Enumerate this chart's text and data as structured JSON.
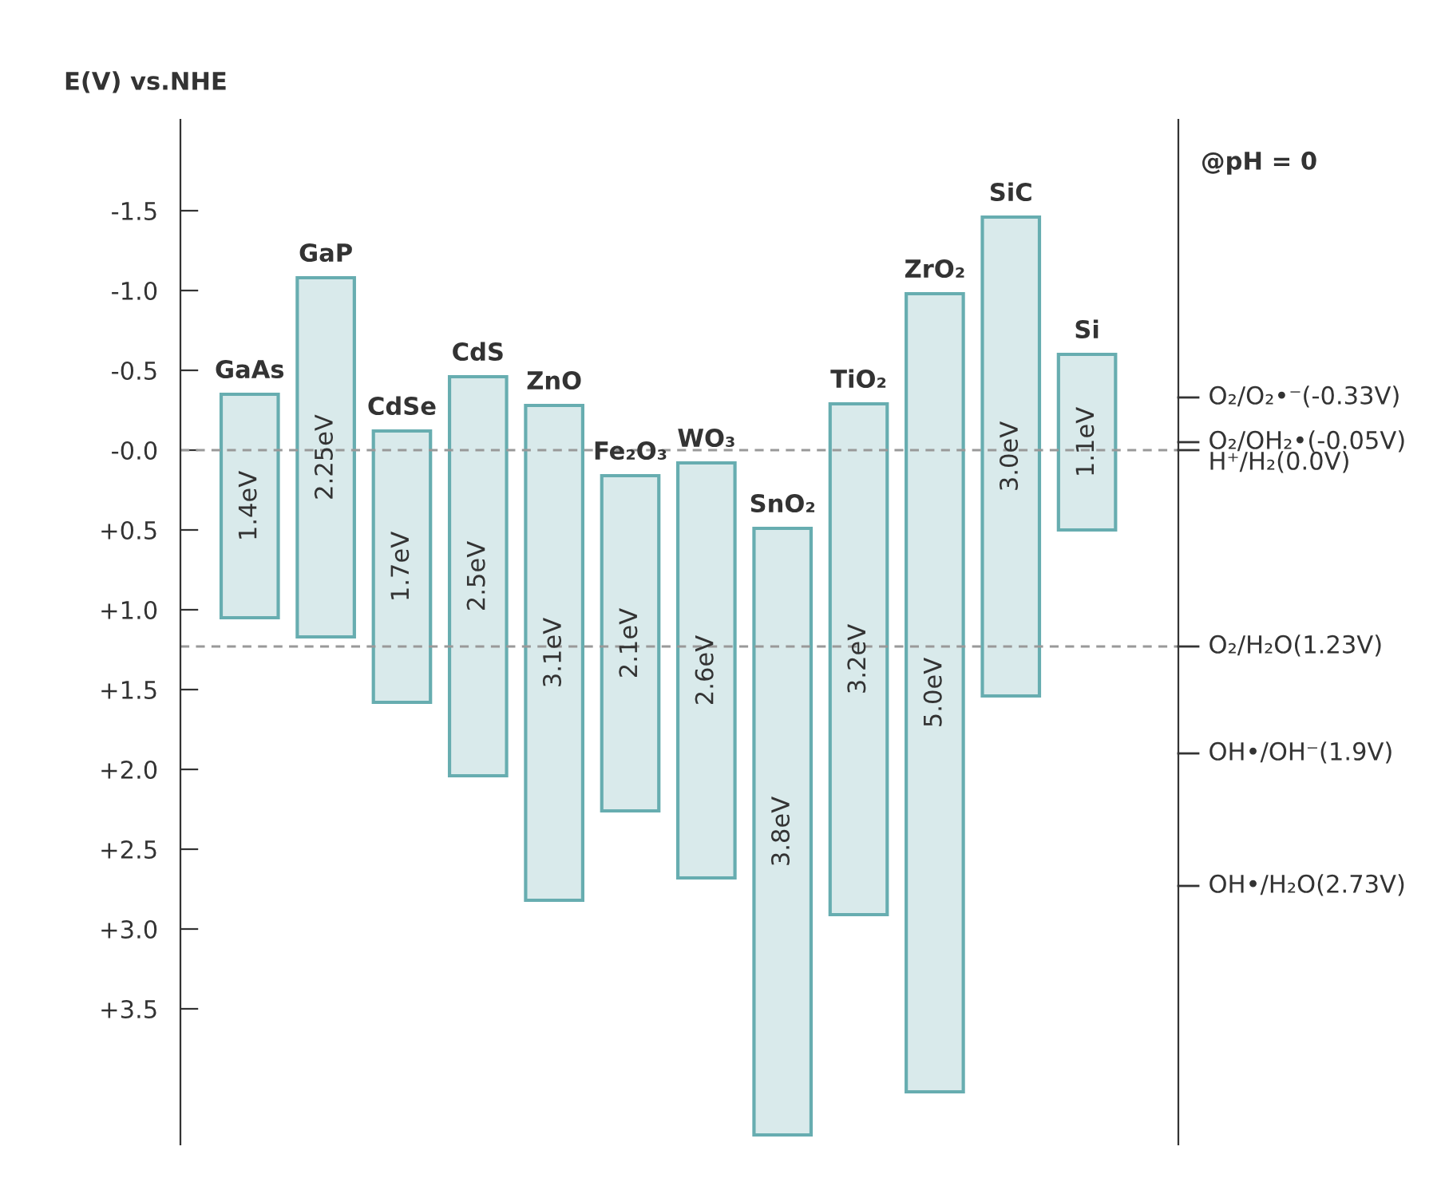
{
  "chart_data": {
    "type": "bar",
    "ylabel": "E(V) vs.NHE",
    "categories": [
      "GaAs",
      "GaP",
      "CdSe",
      "CdS",
      "ZnO",
      "Fe₂O₃",
      "WO₃",
      "SnO₂",
      "TiO₂",
      "ZrO₂",
      "SiC",
      "Si"
    ],
    "base": [
      -0.35,
      -1.08,
      -0.12,
      -0.46,
      -0.28,
      0.16,
      0.08,
      0.49,
      -0.29,
      -0.98,
      -1.46,
      -0.6
    ],
    "values": [
      1.4,
      2.25,
      1.7,
      2.5,
      3.1,
      2.1,
      2.6,
      3.8,
      3.2,
      5.0,
      3.0,
      1.1
    ],
    "value_labels": [
      "1.4eV",
      "2.25eV",
      "1.7eV",
      "2.5eV",
      "3.1eV",
      "2.1eV",
      "2.6eV",
      "3.8eV",
      "3.2eV",
      "5.0eV",
      "3.0eV",
      "1.1eV"
    ],
    "color": "#67adb0",
    "ylim": [
      4.35,
      -2.07
    ],
    "yticks": [
      {
        "value": -1.5,
        "label": "-1.5"
      },
      {
        "value": -1.0,
        "label": "-1.0"
      },
      {
        "value": -0.5,
        "label": "-0.5"
      },
      {
        "value": 0.0,
        "label": "-0.0"
      },
      {
        "value": 0.5,
        "label": "+0.5"
      },
      {
        "value": 1.0,
        "label": "+1.0"
      },
      {
        "value": 1.5,
        "label": "+1.5"
      },
      {
        "value": 2.0,
        "label": "+2.0"
      },
      {
        "value": 2.5,
        "label": "+2.5"
      },
      {
        "value": 3.0,
        "label": "+3.0"
      },
      {
        "value": 3.5,
        "label": "+3.5"
      }
    ],
    "ref_lines": [
      {
        "axis": "y",
        "value": -0.33,
        "label": "O₂/O₂•⁻(-0.33V)",
        "line_style": "solid"
      },
      {
        "axis": "y",
        "value": -0.05,
        "label": "O₂/OH₂•(-0.05V)",
        "line_style": "solid"
      },
      {
        "axis": "y",
        "value": 0.0,
        "label": "H⁺/H₂(0.0V)",
        "line_style": "dashed",
        "color": "#999999"
      },
      {
        "axis": "y",
        "value": 1.23,
        "label": "O₂/H₂O(1.23V)",
        "line_style": "dashed",
        "color": "#999999"
      },
      {
        "axis": "y",
        "value": 1.9,
        "label": "OH•/OH⁻(1.9V)",
        "line_style": "solid"
      },
      {
        "axis": "y",
        "value": 2.73,
        "label": "OH•/H₂O(2.73V)",
        "line_style": "solid"
      }
    ],
    "annotations": [
      "@pH = 0"
    ],
    "grid": false,
    "legend": false
  }
}
